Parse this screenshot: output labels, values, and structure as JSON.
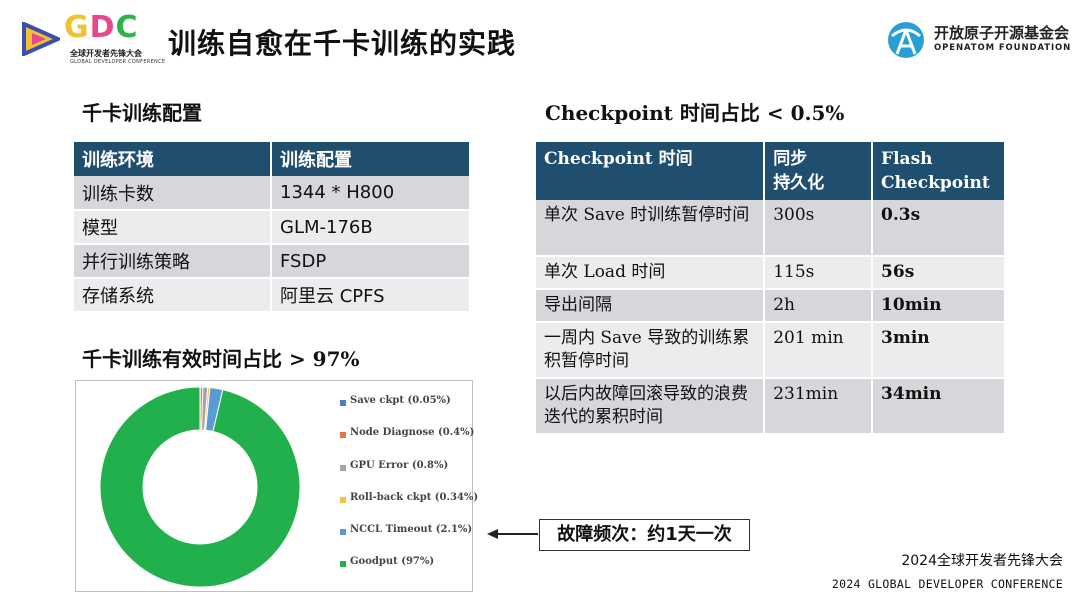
{
  "header": {
    "gdc_logo": {
      "letters": [
        "G",
        "D",
        "C"
      ],
      "colors": [
        "#f2c12e",
        "#e6478e",
        "#2db34a"
      ],
      "cn": "全球开发者先锋大会",
      "en": "GLOBAL DEVELOPER CONFERENCE"
    },
    "title": "训练自愈在千卡训练的实践",
    "openatom_logo": {
      "cn": "开放原子开源基金会",
      "en": "OPENATOM FOUNDATION",
      "color": "#2a9fd6"
    }
  },
  "left": {
    "config_heading": "千卡训练配置",
    "config_table": {
      "headers": [
        "训练环境",
        "训练配置"
      ],
      "rows": [
        [
          "训练卡数",
          "1344 * H800"
        ],
        [
          "模型",
          "GLM-176B"
        ],
        [
          "并行训练策略",
          "FSDP"
        ],
        [
          "存储系统",
          "阿里云 CPFS"
        ]
      ]
    },
    "effective_heading": "千卡训练有效时间占比 > 97%"
  },
  "right": {
    "ck_heading": "Checkpoint 时间占比 < 0.5%",
    "ck_table": {
      "headers": [
        "Checkpoint 时间",
        "同步\n持久化",
        "Flash\nCheckpoint"
      ],
      "rows": [
        [
          "单次 Save 时训练暂停时间",
          "300s",
          "0.3s"
        ],
        [
          "单次 Load 时间",
          "115s",
          "56s"
        ],
        [
          "导出间隔",
          "2h",
          "10min"
        ],
        [
          "一周内 Save 导致的训练累积暂停时间",
          "201 min",
          "3min"
        ],
        [
          "以后内故障回滚导致的浪费迭代的累积时间",
          "231min",
          "34min"
        ]
      ]
    }
  },
  "chart_data": {
    "type": "pie",
    "style": "donut",
    "legend_position": "right",
    "series": [
      {
        "name": "Save ckpt (0.05%)",
        "value": 0.05,
        "color": "#4a7ebb"
      },
      {
        "name": "Node Diagnose (0.4%)",
        "value": 0.4,
        "color": "#e07b39"
      },
      {
        "name": "GPU Error (0.8%)",
        "value": 0.8,
        "color": "#a5a5a5"
      },
      {
        "name": "Roll-back ckpt (0.34%)",
        "value": 0.34,
        "color": "#f5c242"
      },
      {
        "name": "NCCL Timeout (2.1%)",
        "value": 2.1,
        "color": "#5b9bd5"
      },
      {
        "name": "Goodput (97%)",
        "value": 97,
        "color": "#21b04b"
      }
    ]
  },
  "annotation": {
    "callout": "故障频次：约1天一次"
  },
  "footer": {
    "cn": "2024全球开发者先锋大会",
    "en": "2024 GLOBAL DEVELOPER CONFERENCE"
  }
}
